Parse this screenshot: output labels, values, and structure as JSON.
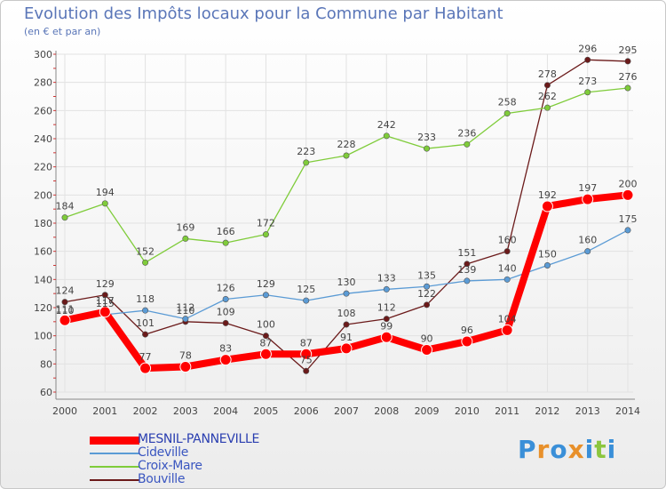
{
  "title": "Evolution des Impôts locaux pour la Commune par Habitant",
  "subtitle": "(en € et par an)",
  "logo": {
    "letters": [
      "P",
      "r",
      "o",
      "x",
      "i",
      "t",
      "i"
    ],
    "colors": [
      "#3a8fd8",
      "#e8902a",
      "#3a8fd8",
      "#e8902a",
      "#3a8fd8",
      "#8cc63f",
      "#3a8fd8"
    ]
  },
  "chart_data": {
    "type": "line",
    "title": "Evolution des Impôts locaux pour la Commune par Habitant",
    "subtitle": "(en € et par an)",
    "x": [
      "2000",
      "2001",
      "2002",
      "2003",
      "2004",
      "2005",
      "2006",
      "2007",
      "2008",
      "2009",
      "2010",
      "2011",
      "2012",
      "2013",
      "2014"
    ],
    "ylim": [
      60,
      300
    ],
    "yticks": [
      60,
      80,
      100,
      120,
      140,
      160,
      180,
      200,
      220,
      240,
      260,
      280,
      300
    ],
    "grid": true,
    "legend_position": "bottom-left",
    "series": [
      {
        "name": "MESNIL-PANNEVILLE",
        "color": "#ff0000",
        "values": [
          111,
          117,
          77,
          78,
          83,
          87,
          87,
          91,
          99,
          90,
          96,
          104,
          192,
          197,
          200
        ]
      },
      {
        "name": "Cideville",
        "color": "#5b9bd5",
        "values": [
          110,
          115,
          118,
          112,
          126,
          129,
          125,
          130,
          133,
          135,
          139,
          140,
          150,
          160,
          175
        ]
      },
      {
        "name": "Croix-Mare",
        "color": "#7fcc3a",
        "values": [
          184,
          194,
          152,
          169,
          166,
          172,
          223,
          228,
          242,
          233,
          236,
          258,
          262,
          273,
          276
        ]
      },
      {
        "name": "Bouville",
        "color": "#6b1a1a",
        "values": [
          124,
          129,
          101,
          110,
          109,
          100,
          75,
          108,
          112,
          122,
          151,
          160,
          278,
          296,
          295
        ]
      }
    ]
  }
}
